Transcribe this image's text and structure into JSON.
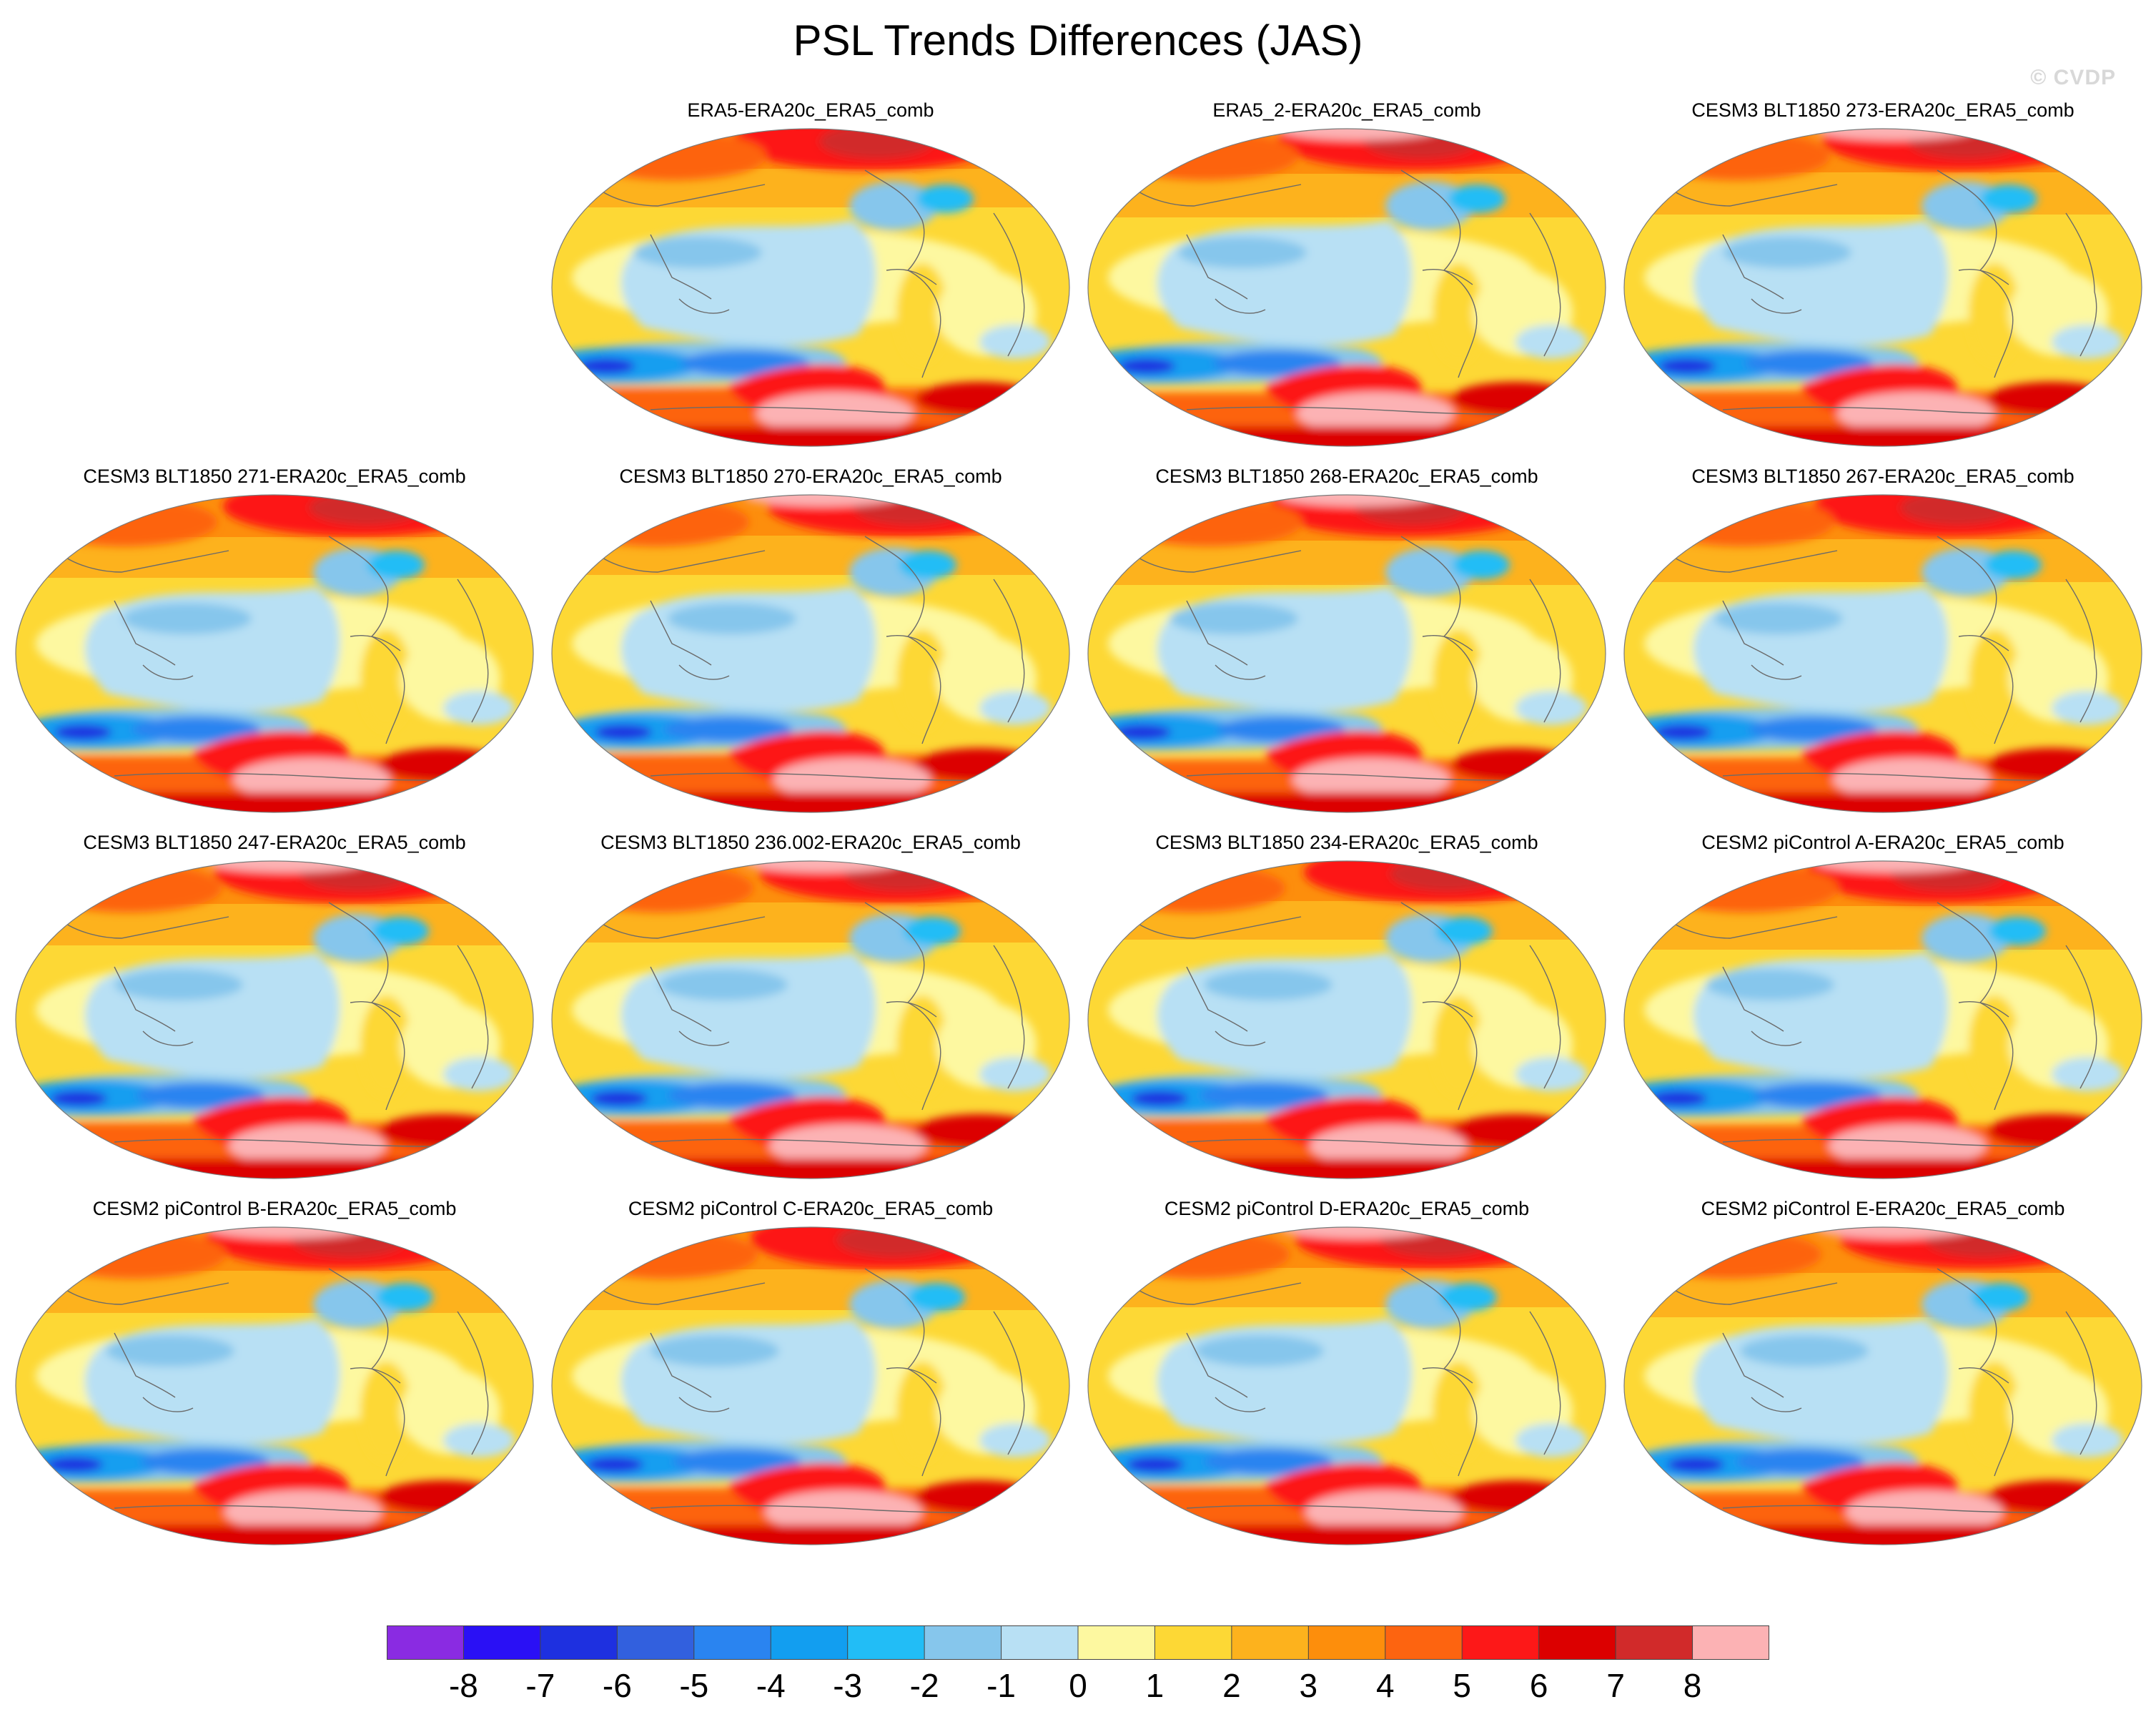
{
  "figure": {
    "title": "PSL Trends Differences (JAS)",
    "watermark": "© CVDP"
  },
  "panels": [
    {
      "title": "ERA5-ERA20c_ERA5_comb",
      "variant": 0
    },
    {
      "title": "ERA5_2-ERA20c_ERA5_comb",
      "variant": 1
    },
    {
      "title": "CESM3 BLT1850 273-ERA20c_ERA5_comb",
      "variant": 2
    },
    {
      "title": "CESM3 BLT1850 271-ERA20c_ERA5_comb",
      "variant": 3
    },
    {
      "title": "CESM3 BLT1850 270-ERA20c_ERA5_comb",
      "variant": 4
    },
    {
      "title": "CESM3 BLT1850 268-ERA20c_ERA5_comb",
      "variant": 5
    },
    {
      "title": "CESM3 BLT1850 267-ERA20c_ERA5_comb",
      "variant": 6
    },
    {
      "title": "CESM3 BLT1850 247-ERA20c_ERA5_comb",
      "variant": 7
    },
    {
      "title": "CESM3 BLT1850 236.002-ERA20c_ERA5_comb",
      "variant": 8
    },
    {
      "title": "CESM3 BLT1850 234-ERA20c_ERA5_comb",
      "variant": 9
    },
    {
      "title": "CESM2 piControl A-ERA20c_ERA5_comb",
      "variant": 10
    },
    {
      "title": "CESM2 piControl B-ERA20c_ERA5_comb",
      "variant": 11
    },
    {
      "title": "CESM2 piControl C-ERA20c_ERA5_comb",
      "variant": 12
    },
    {
      "title": "CESM2 piControl D-ERA20c_ERA5_comb",
      "variant": 13
    },
    {
      "title": "CESM2 piControl E-ERA20c_ERA5_comb",
      "variant": 14
    }
  ],
  "colorbar": {
    "labels": [
      "-8",
      "-7",
      "-6",
      "-5",
      "-4",
      "-3",
      "-2",
      "-1",
      "0",
      "1",
      "2",
      "3",
      "4",
      "5",
      "6",
      "7",
      "8"
    ],
    "colors": [
      "#8a2be2",
      "#2a10f5",
      "#1e30e0",
      "#3260de",
      "#2a84f0",
      "#129ef0",
      "#22bdf6",
      "#86c6ec",
      "#b8e0f4",
      "#fdf8a0",
      "#fdd835",
      "#fdb21d",
      "#fd8e0c",
      "#fd6410",
      "#fd1818",
      "#dc0000",
      "#d12a2a",
      "#fcb2b4"
    ]
  }
}
